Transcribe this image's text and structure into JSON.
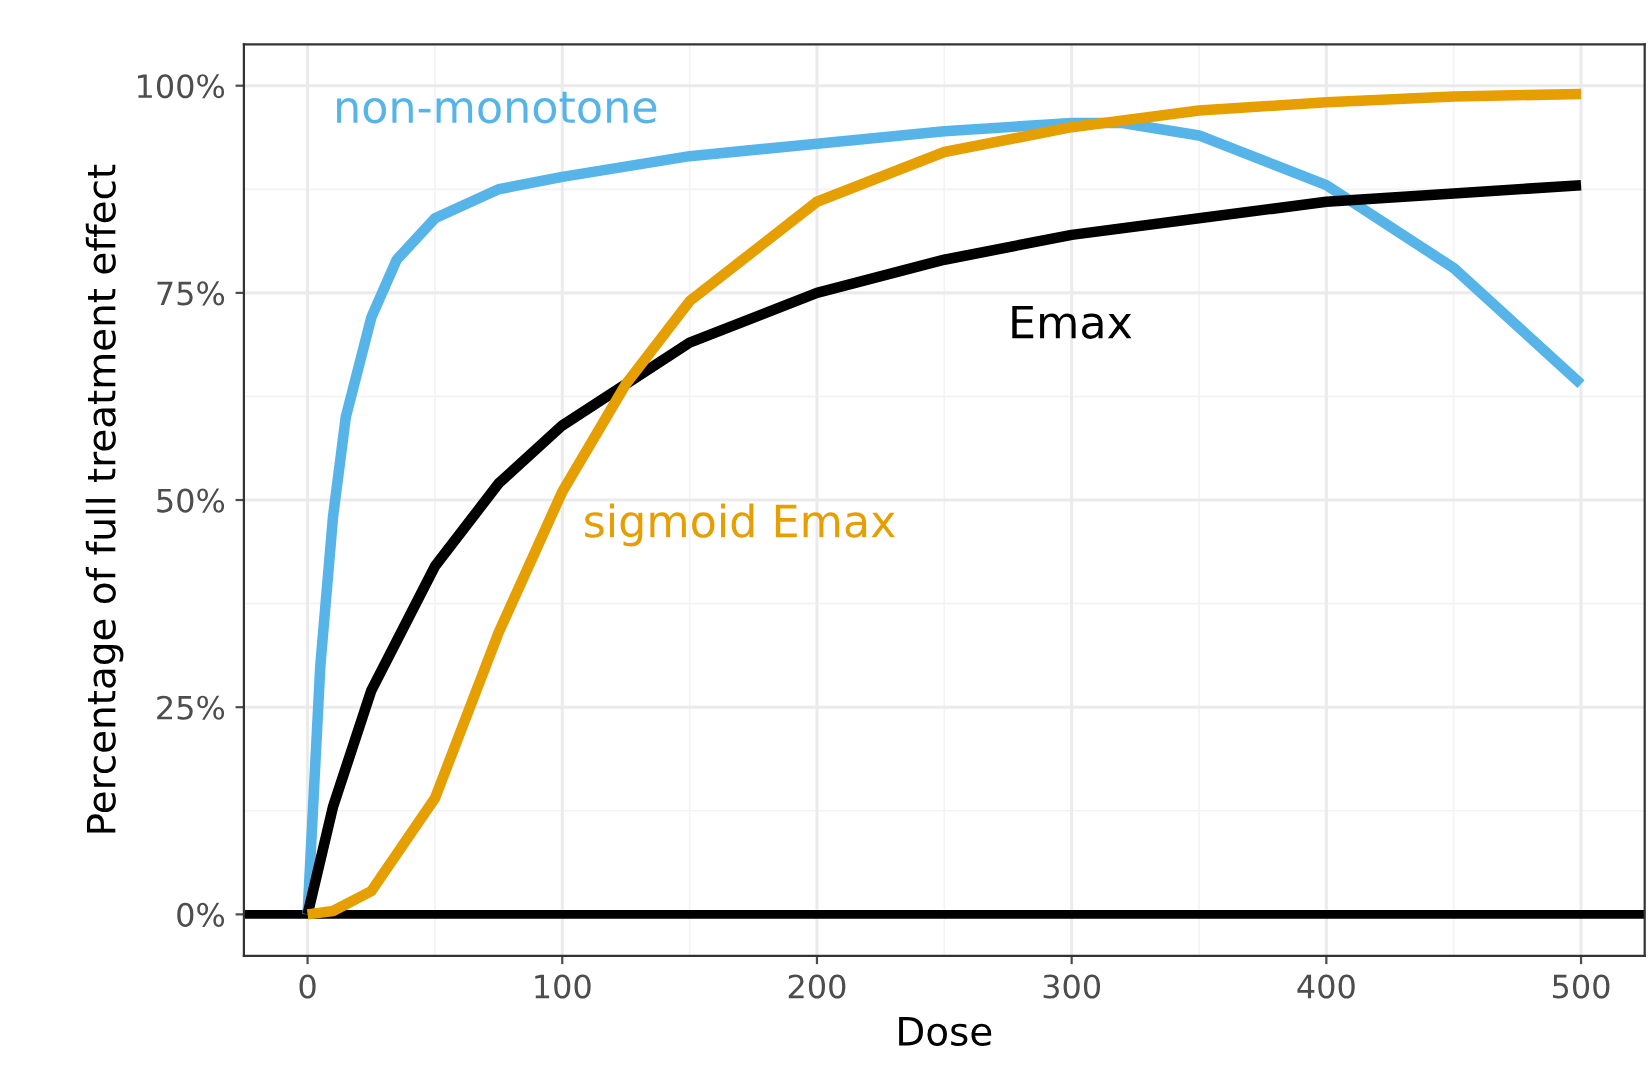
{
  "chart_data": {
    "type": "line",
    "xlabel": "Dose",
    "ylabel": "Percentage of full treatment effect",
    "xlim": [
      -25,
      525
    ],
    "xticks": [
      0,
      100,
      200,
      300,
      400,
      500
    ],
    "ylim": [
      -5,
      105
    ],
    "yticks": [
      {
        "value": 0,
        "label": "0%"
      },
      {
        "value": 25,
        "label": "25%"
      },
      {
        "value": 50,
        "label": "50%"
      },
      {
        "value": 75,
        "label": "75%"
      },
      {
        "value": 100,
        "label": "100%"
      }
    ],
    "grid": true,
    "legend": false,
    "marker": "none",
    "line_style": "solid",
    "ref_lines": [
      {
        "axis": "y",
        "value": 0,
        "color": "#000000",
        "line_style": "solid"
      }
    ],
    "series": [
      {
        "name": "non-monotone",
        "color": "#56b4e9",
        "x": [
          0,
          5,
          10,
          15,
          25,
          35,
          50,
          75,
          100,
          150,
          200,
          250,
          300,
          320,
          350,
          400,
          450,
          500
        ],
        "values": [
          0,
          30,
          48,
          60,
          72,
          79,
          84,
          87.5,
          89,
          91.5,
          93,
          94.5,
          95.5,
          95.5,
          94,
          88,
          78,
          64
        ]
      },
      {
        "name": "Emax",
        "color": "#000000",
        "x": [
          0,
          10,
          25,
          50,
          75,
          100,
          150,
          200,
          250,
          300,
          350,
          400,
          450,
          500
        ],
        "values": [
          0,
          13,
          27,
          42,
          52,
          59,
          69,
          75,
          79,
          82,
          84,
          86,
          87,
          88
        ]
      },
      {
        "name": "sigmoid Emax",
        "color": "#e69f00",
        "x": [
          0,
          10,
          25,
          50,
          75,
          100,
          125,
          150,
          200,
          250,
          300,
          350,
          400,
          450,
          500
        ],
        "values": [
          0,
          0.4,
          2.8,
          14,
          34,
          51,
          64,
          74,
          86,
          92,
          95,
          97,
          98,
          98.7,
          99
        ]
      }
    ]
  }
}
